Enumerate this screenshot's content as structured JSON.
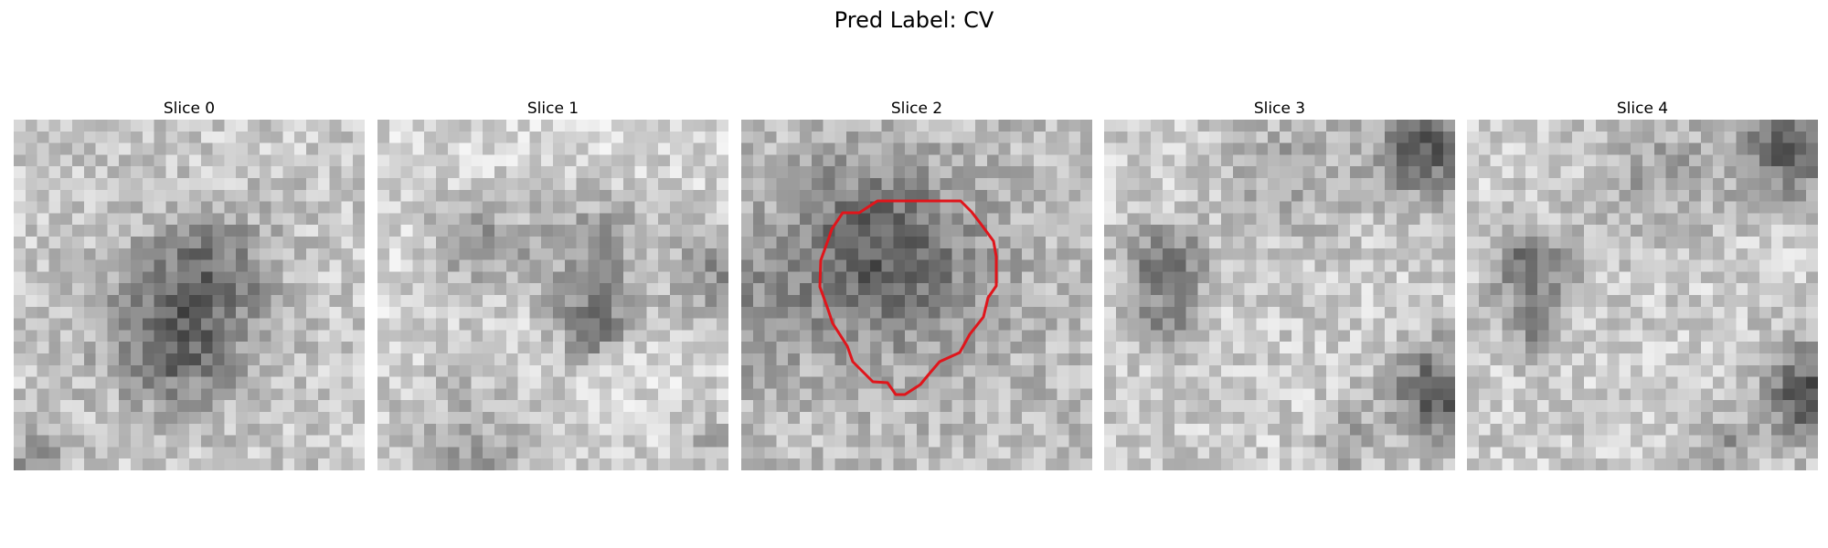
{
  "figure": {
    "title": "Pred Label: CV",
    "colormap": "grayscale",
    "contour_color": "#e0151b",
    "panels": [
      {
        "title": "Slice 0",
        "has_contour": false
      },
      {
        "title": "Slice 1",
        "has_contour": false
      },
      {
        "title": "Slice 2",
        "has_contour": true
      },
      {
        "title": "Slice 3",
        "has_contour": false
      },
      {
        "title": "Slice 4",
        "has_contour": false
      }
    ]
  }
}
